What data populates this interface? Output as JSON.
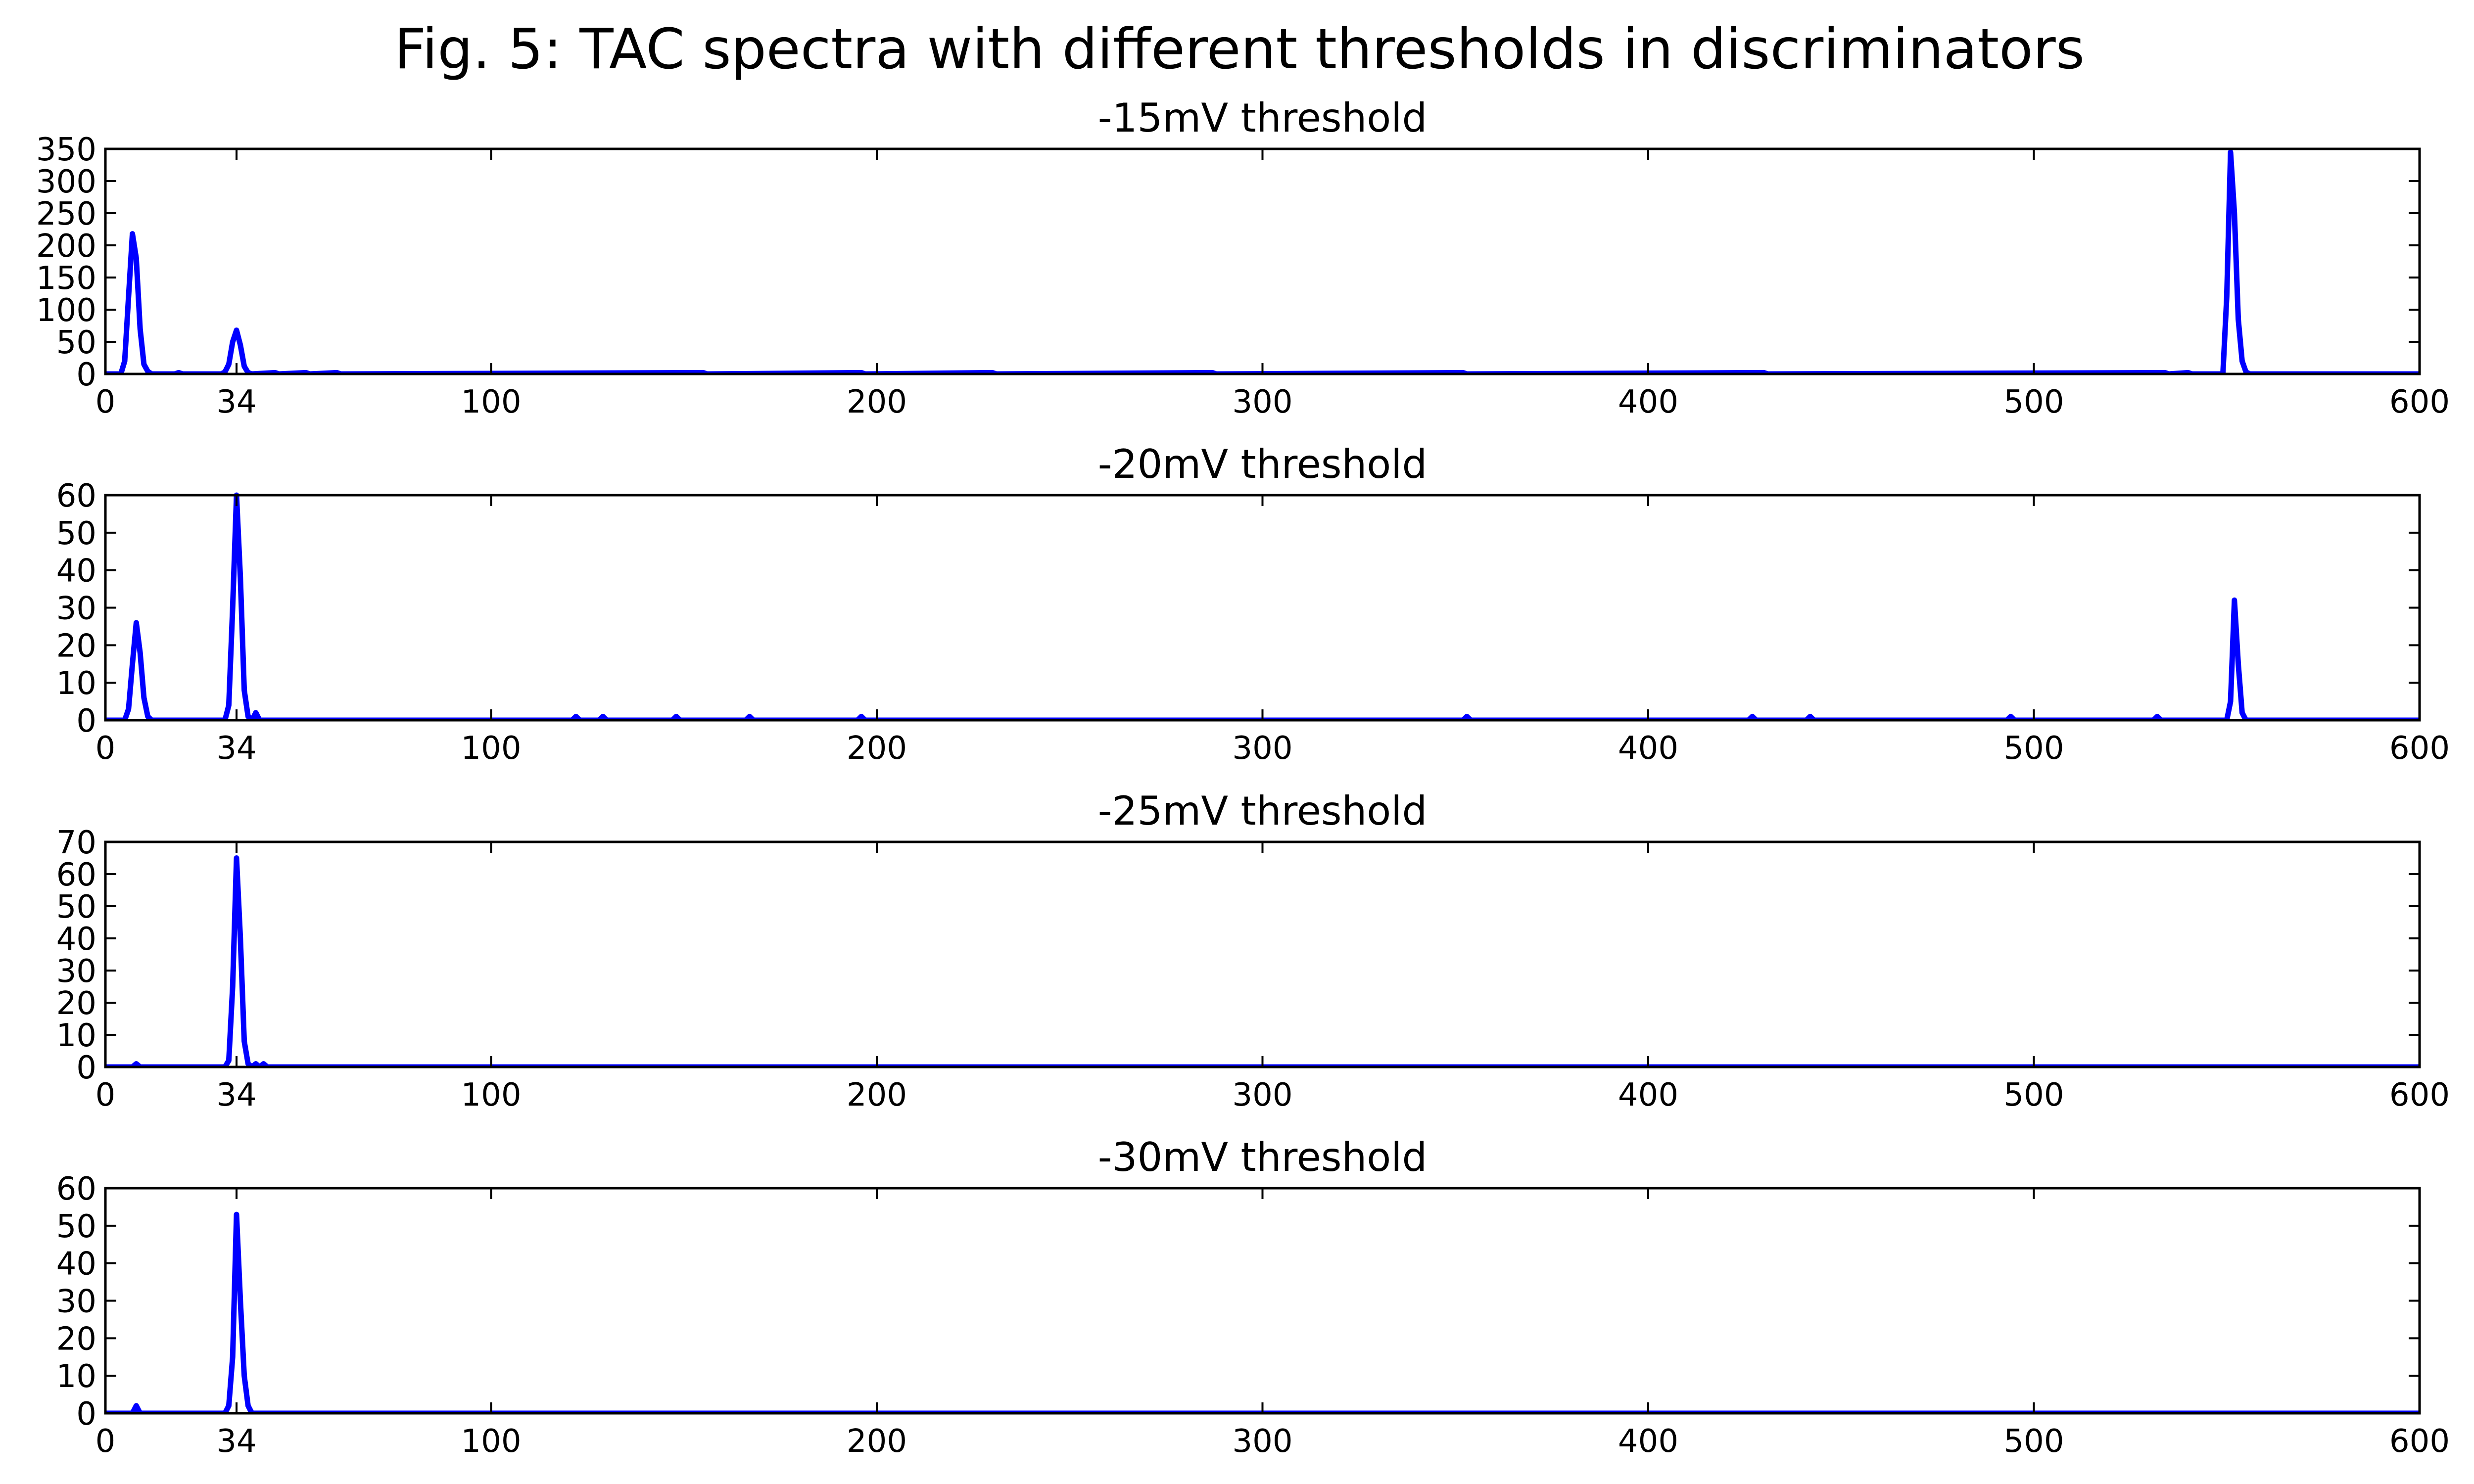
{
  "figure": {
    "title": "Fig. 5: TAC spectra with different thresholds in discriminators"
  },
  "chart_data": [
    {
      "type": "line",
      "title": "-15mV threshold",
      "xlabel": "",
      "ylabel": "",
      "xlim": [
        0,
        600
      ],
      "ylim": [
        0,
        350
      ],
      "xticks": [
        0,
        34,
        100,
        200,
        300,
        400,
        500,
        600
      ],
      "yticks": [
        0,
        50,
        100,
        150,
        200,
        250,
        300,
        350
      ],
      "color": "#0000ff",
      "points": [
        [
          0,
          0
        ],
        [
          4,
          0
        ],
        [
          5,
          20
        ],
        [
          6,
          120
        ],
        [
          7,
          218
        ],
        [
          8,
          180
        ],
        [
          9,
          70
        ],
        [
          10,
          15
        ],
        [
          11,
          4
        ],
        [
          12,
          0
        ],
        [
          18,
          0
        ],
        [
          19,
          2
        ],
        [
          20,
          0
        ],
        [
          30,
          0
        ],
        [
          31,
          3
        ],
        [
          32,
          15
        ],
        [
          33,
          50
        ],
        [
          34,
          68
        ],
        [
          35,
          45
        ],
        [
          36,
          12
        ],
        [
          37,
          2
        ],
        [
          38,
          0
        ],
        [
          44,
          2
        ],
        [
          45,
          0
        ],
        [
          52,
          2
        ],
        [
          53,
          0
        ],
        [
          60,
          2
        ],
        [
          61,
          0
        ],
        [
          155,
          2
        ],
        [
          156,
          0
        ],
        [
          196,
          2
        ],
        [
          197,
          0
        ],
        [
          230,
          2
        ],
        [
          231,
          0
        ],
        [
          287,
          2
        ],
        [
          288,
          0
        ],
        [
          352,
          2
        ],
        [
          353,
          0
        ],
        [
          430,
          2
        ],
        [
          431,
          0
        ],
        [
          534,
          2
        ],
        [
          535,
          0
        ],
        [
          540,
          2
        ],
        [
          541,
          0
        ],
        [
          549,
          0
        ],
        [
          550,
          120
        ],
        [
          551,
          345
        ],
        [
          552,
          250
        ],
        [
          553,
          85
        ],
        [
          554,
          20
        ],
        [
          555,
          3
        ],
        [
          556,
          0
        ],
        [
          600,
          0
        ]
      ]
    },
    {
      "type": "line",
      "title": "-20mV threshold",
      "xlabel": "",
      "ylabel": "",
      "xlim": [
        0,
        600
      ],
      "ylim": [
        0,
        60
      ],
      "xticks": [
        0,
        34,
        100,
        200,
        300,
        400,
        500,
        600
      ],
      "yticks": [
        0,
        10,
        20,
        30,
        40,
        50,
        60
      ],
      "color": "#0000ff",
      "points": [
        [
          0,
          0
        ],
        [
          5,
          0
        ],
        [
          6,
          3
        ],
        [
          7,
          15
        ],
        [
          8,
          26
        ],
        [
          9,
          18
        ],
        [
          10,
          6
        ],
        [
          11,
          1
        ],
        [
          12,
          0
        ],
        [
          31,
          0
        ],
        [
          32,
          4
        ],
        [
          33,
          30
        ],
        [
          34,
          60
        ],
        [
          35,
          38
        ],
        [
          36,
          8
        ],
        [
          37,
          1
        ],
        [
          38,
          0
        ],
        [
          39,
          2
        ],
        [
          40,
          0
        ],
        [
          121,
          0
        ],
        [
          122,
          1
        ],
        [
          123,
          0
        ],
        [
          128,
          0
        ],
        [
          129,
          1
        ],
        [
          130,
          0
        ],
        [
          147,
          0
        ],
        [
          148,
          1
        ],
        [
          149,
          0
        ],
        [
          166,
          0
        ],
        [
          167,
          1
        ],
        [
          168,
          0
        ],
        [
          195,
          0
        ],
        [
          196,
          1
        ],
        [
          197,
          0
        ],
        [
          352,
          0
        ],
        [
          353,
          1
        ],
        [
          354,
          0
        ],
        [
          426,
          0
        ],
        [
          427,
          1
        ],
        [
          428,
          0
        ],
        [
          441,
          0
        ],
        [
          442,
          1
        ],
        [
          443,
          0
        ],
        [
          493,
          0
        ],
        [
          494,
          1
        ],
        [
          495,
          0
        ],
        [
          531,
          0
        ],
        [
          532,
          1
        ],
        [
          533,
          0
        ],
        [
          550,
          0
        ],
        [
          551,
          5
        ],
        [
          552,
          32
        ],
        [
          553,
          15
        ],
        [
          554,
          2
        ],
        [
          555,
          0
        ],
        [
          600,
          0
        ]
      ]
    },
    {
      "type": "line",
      "title": "-25mV threshold",
      "xlabel": "",
      "ylabel": "",
      "xlim": [
        0,
        600
      ],
      "ylim": [
        0,
        70
      ],
      "xticks": [
        0,
        34,
        100,
        200,
        300,
        400,
        500,
        600
      ],
      "yticks": [
        0,
        10,
        20,
        30,
        40,
        50,
        60,
        70
      ],
      "color": "#0000ff",
      "points": [
        [
          0,
          0
        ],
        [
          7,
          0
        ],
        [
          8,
          1
        ],
        [
          9,
          0
        ],
        [
          31,
          0
        ],
        [
          32,
          2
        ],
        [
          33,
          25
        ],
        [
          34,
          65
        ],
        [
          35,
          40
        ],
        [
          36,
          8
        ],
        [
          37,
          1
        ],
        [
          38,
          0
        ],
        [
          39,
          1
        ],
        [
          40,
          0
        ],
        [
          41,
          1
        ],
        [
          42,
          0
        ],
        [
          600,
          0
        ]
      ]
    },
    {
      "type": "line",
      "title": "-30mV threshold",
      "xlabel": "",
      "ylabel": "",
      "xlim": [
        0,
        600
      ],
      "ylim": [
        0,
        60
      ],
      "xticks": [
        0,
        34,
        100,
        200,
        300,
        400,
        500,
        600
      ],
      "yticks": [
        0,
        10,
        20,
        30,
        40,
        50,
        60
      ],
      "color": "#0000ff",
      "points": [
        [
          0,
          0
        ],
        [
          7,
          0
        ],
        [
          8,
          2
        ],
        [
          9,
          0
        ],
        [
          31,
          0
        ],
        [
          32,
          2
        ],
        [
          33,
          15
        ],
        [
          34,
          53
        ],
        [
          35,
          30
        ],
        [
          36,
          10
        ],
        [
          37,
          2
        ],
        [
          38,
          0
        ],
        [
          600,
          0
        ]
      ]
    }
  ]
}
